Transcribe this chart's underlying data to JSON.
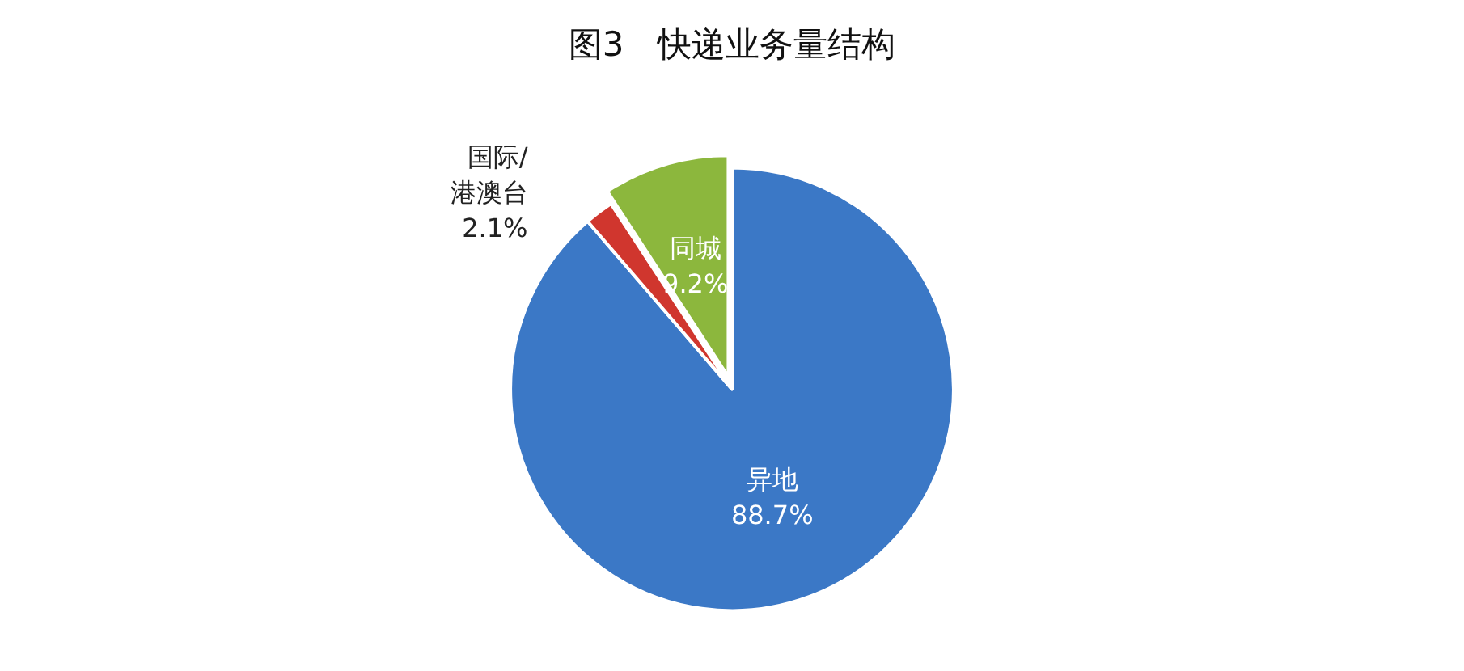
{
  "chart_data": {
    "type": "pie",
    "title": "图3　快递业务量结构",
    "categories": [
      "异地",
      "国际/港澳台",
      "同城"
    ],
    "values": [
      88.7,
      2.1,
      9.2
    ],
    "colors": [
      "#3b78c6",
      "#d0362e",
      "#8cb73d"
    ],
    "value_labels": [
      "88.7%",
      "2.1%",
      "9.2%"
    ],
    "legend": false
  }
}
